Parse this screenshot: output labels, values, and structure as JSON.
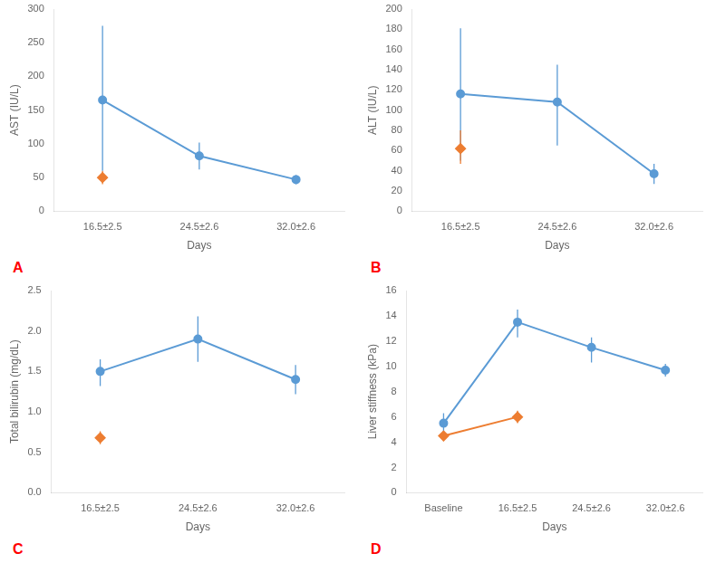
{
  "chart_data": [
    {
      "type": "line",
      "xlabel": "Days",
      "ylabel": "AST (IU/L)",
      "annotations": [
        {
          "text": "A",
          "color": "#ff0000"
        }
      ],
      "categories": [
        "16.5±2.5",
        "24.5±2.6",
        "32.0±2.6"
      ],
      "series": [
        {
          "color": "#5b9bd5",
          "marker": "circle",
          "line_style": "solid",
          "values": [
            165,
            82,
            47
          ],
          "yerr_lo": [
            105,
            20,
            7
          ],
          "yerr_hi": [
            110,
            20,
            7
          ]
        },
        {
          "color": "#ed7d31",
          "marker": "diamond",
          "line_style": "none",
          "values": [
            50,
            null,
            null
          ],
          "yerr_lo": [
            10,
            null,
            null
          ],
          "yerr_hi": [
            10,
            null,
            null
          ]
        }
      ],
      "ylim": [
        0,
        300
      ],
      "yticks": [
        0,
        50,
        100,
        150,
        200,
        250,
        300
      ],
      "grid": false
    },
    {
      "type": "line",
      "xlabel": "Days",
      "ylabel": "ALT (IU/L)",
      "annotations": [
        {
          "text": "B",
          "color": "#ff0000"
        }
      ],
      "categories": [
        "16.5±2.5",
        "24.5±2.6",
        "32.0±2.6"
      ],
      "series": [
        {
          "color": "#5b9bd5",
          "marker": "circle",
          "line_style": "solid",
          "values": [
            116,
            108,
            37
          ],
          "yerr_lo": [
            66,
            43,
            10
          ],
          "yerr_hi": [
            65,
            37,
            10
          ]
        },
        {
          "color": "#ed7d31",
          "marker": "diamond",
          "line_style": "none",
          "values": [
            62,
            null,
            null
          ],
          "yerr_lo": [
            15,
            null,
            null
          ],
          "yerr_hi": [
            18,
            null,
            null
          ]
        }
      ],
      "ylim": [
        0,
        200
      ],
      "yticks": [
        0,
        20,
        40,
        60,
        80,
        100,
        120,
        140,
        160,
        180,
        200
      ],
      "grid": false
    },
    {
      "type": "line",
      "xlabel": "Days",
      "ylabel": "Total bilirubin (mg/dL)",
      "annotations": [
        {
          "text": "C",
          "color": "#ff0000"
        }
      ],
      "categories": [
        "16.5±2.5",
        "24.5±2.6",
        "32.0±2.6"
      ],
      "series": [
        {
          "color": "#5b9bd5",
          "marker": "circle",
          "line_style": "solid",
          "values": [
            1.5,
            1.9,
            1.4
          ],
          "yerr_lo": [
            0.18,
            0.28,
            0.18
          ],
          "yerr_hi": [
            0.15,
            0.28,
            0.18
          ]
        },
        {
          "color": "#ed7d31",
          "marker": "diamond",
          "line_style": "none",
          "values": [
            0.68,
            null,
            null
          ],
          "yerr_lo": [
            0.08,
            null,
            null
          ],
          "yerr_hi": [
            0.08,
            null,
            null
          ]
        }
      ],
      "ylim": [
        0,
        2.5
      ],
      "yticks": [
        {
          "value": 0,
          "label": "0.0"
        },
        0.5,
        {
          "value": 1,
          "label": "1.0"
        },
        1.5,
        {
          "value": 2,
          "label": "2.0"
        },
        2.5
      ],
      "grid": false
    },
    {
      "type": "line",
      "xlabel": "Days",
      "ylabel": "Liver stiffness (kPa)",
      "annotations": [
        {
          "text": "D",
          "color": "#ff0000"
        }
      ],
      "categories": [
        "Baseline",
        "16.5±2.5",
        "24.5±2.6",
        "32.0±2.6"
      ],
      "series": [
        {
          "color": "#5b9bd5",
          "marker": "circle",
          "line_style": "solid",
          "values": [
            5.5,
            13.5,
            11.5,
            9.7
          ],
          "yerr_lo": [
            0.8,
            1.2,
            1.2,
            0.5
          ],
          "yerr_hi": [
            0.8,
            1.0,
            0.8,
            0.5
          ]
        },
        {
          "color": "#ed7d31",
          "marker": "diamond",
          "line_style": "solid",
          "values": [
            4.5,
            6.0,
            null,
            null
          ],
          "yerr_lo": [
            0.4,
            0.5,
            null,
            null
          ],
          "yerr_hi": [
            0.4,
            0.5,
            null,
            null
          ]
        }
      ],
      "ylim": [
        0,
        16
      ],
      "yticks": [
        0,
        2,
        4,
        6,
        8,
        10,
        12,
        14,
        16
      ],
      "grid": false
    }
  ]
}
